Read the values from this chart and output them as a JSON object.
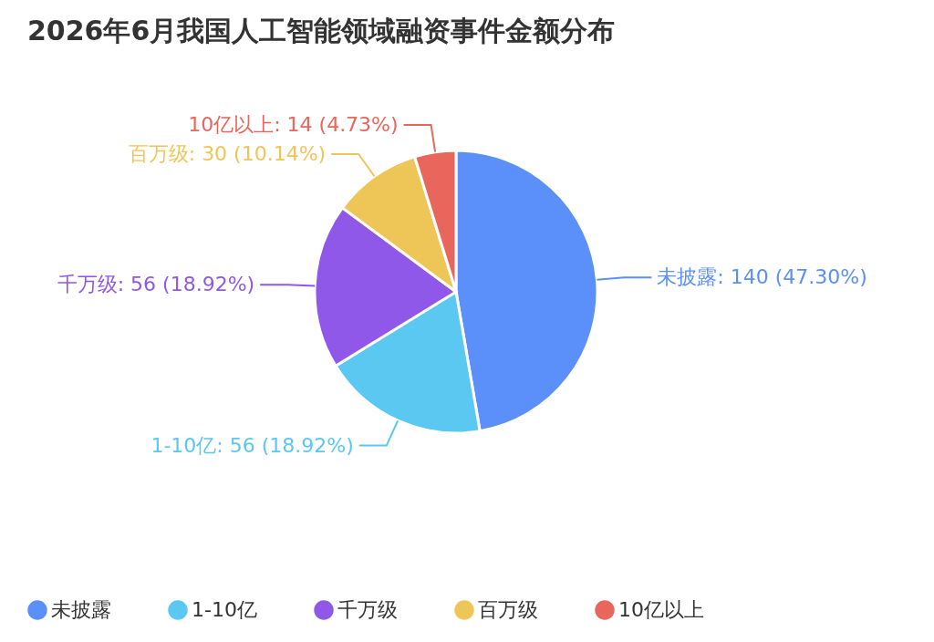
{
  "chart_data": {
    "type": "pie",
    "title": "2026年6月我国人工智能领域融资事件金额分布",
    "categories": [
      "未披露",
      "1-10亿",
      "千万级",
      "百万级",
      "10亿以上"
    ],
    "values": [
      140,
      56,
      56,
      30,
      14
    ],
    "colors": [
      "#5b8ff9",
      "#5ac8f0",
      "#9058e8",
      "#eec658",
      "#e8665c"
    ],
    "value_labels": [
      "未披露: 140 (47.30%)",
      "1-10亿: 56 (18.92%)",
      "千万级: 56 (18.92%)",
      "百万级: 30 (10.14%)",
      "10亿以上: 14 (4.73%)"
    ],
    "legend": "bottom"
  }
}
